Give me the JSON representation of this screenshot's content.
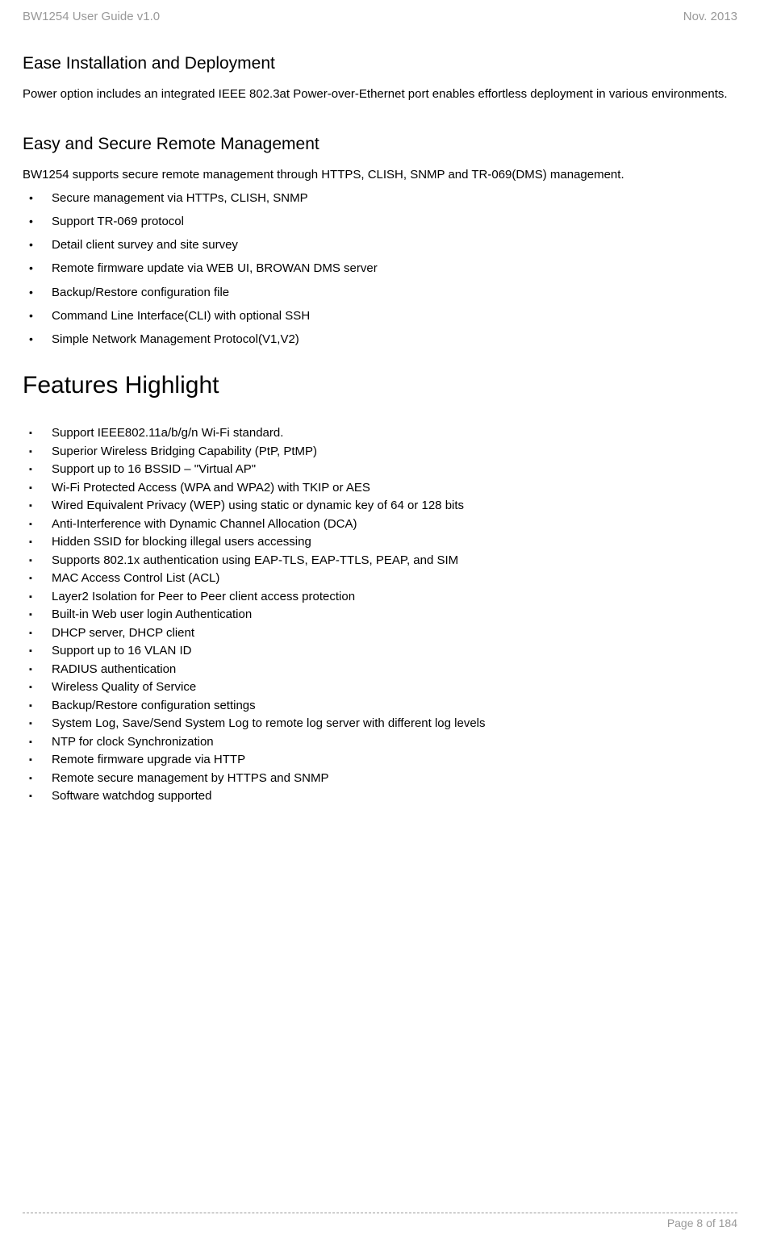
{
  "header": {
    "left": "BW1254 User Guide v1.0",
    "right": "Nov.  2013"
  },
  "sections": {
    "ease_install": {
      "title": "Ease Installation and Deployment",
      "body": "Power option includes an integrated IEEE 802.3at Power-over-Ethernet port enables effortless deployment in various environments."
    },
    "easy_secure": {
      "title": "Easy and Secure Remote Management",
      "body": "BW1254 supports secure remote management through HTTPS, CLISH, SNMP and TR-069(DMS) management.",
      "bullets": [
        "Secure management via HTTPs, CLISH, SNMP",
        "Support TR-069 protocol",
        "Detail client survey and site survey",
        "Remote firmware update via WEB UI, BROWAN DMS server",
        "Backup/Restore configuration file",
        "Command Line Interface(CLI) with optional SSH",
        "Simple Network Management Protocol(V1,V2)"
      ]
    },
    "features": {
      "title": "Features Highlight",
      "items": [
        "Support IEEE802.11a/b/g/n Wi-Fi standard.",
        "Superior Wireless Bridging Capability (PtP, PtMP)",
        "Support up to 16 BSSID – \"Virtual AP\"",
        "Wi-Fi Protected Access (WPA and WPA2) with TKIP or AES",
        "Wired Equivalent Privacy (WEP) using static or dynamic key of 64 or 128 bits",
        "Anti-Interference with Dynamic Channel Allocation (DCA)",
        "Hidden SSID for blocking illegal users accessing",
        "Supports 802.1x authentication using EAP-TLS, EAP-TTLS, PEAP, and SIM",
        "MAC Access Control List (ACL)",
        "Layer2 Isolation for Peer to Peer client access protection",
        "Built-in Web user login Authentication",
        "DHCP server, DHCP client",
        "Support up to 16 VLAN ID",
        "RADIUS authentication",
        "Wireless Quality of Service",
        "Backup/Restore configuration settings",
        "System Log, Save/Send System Log to remote log server with different log levels",
        "NTP for clock Synchronization",
        "Remote firmware upgrade via HTTP",
        "Remote secure management by HTTPS and SNMP",
        "Software watchdog supported"
      ]
    }
  },
  "footer": {
    "page": "Page 8 of 184"
  },
  "colors": {
    "header_text": "#999999",
    "body_text": "#000000",
    "background": "#ffffff",
    "dash_line": "#999999"
  }
}
